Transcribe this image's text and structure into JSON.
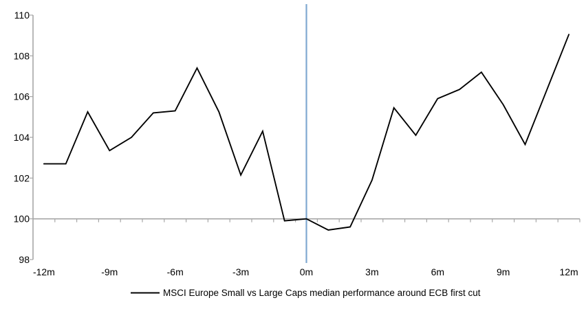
{
  "chart_data": {
    "type": "line",
    "title": "",
    "xlabel": "",
    "ylabel": "",
    "x_months": [
      -12,
      -11,
      -10,
      -9,
      -8,
      -7,
      -6,
      -5,
      -4,
      -3,
      -2,
      -1,
      0,
      1,
      2,
      3,
      4,
      5,
      6,
      7,
      8,
      9,
      10,
      11,
      12
    ],
    "series": [
      {
        "name": "MSCI Europe Small vs Large Caps median performance around ECB first cut",
        "values": [
          102.7,
          102.7,
          105.25,
          103.35,
          104.0,
          105.2,
          105.3,
          107.4,
          105.25,
          102.15,
          104.3,
          99.9,
          100.0,
          99.45,
          99.6,
          101.9,
          105.45,
          104.1,
          105.9,
          106.35,
          107.2,
          105.6,
          103.65,
          106.35,
          109.05
        ]
      }
    ],
    "x_tick_months": [
      -12,
      -9,
      -6,
      -3,
      0,
      3,
      6,
      9,
      12
    ],
    "x_tick_labels": [
      "-12m",
      "-9m",
      "-6m",
      "-3m",
      "0m",
      "3m",
      "6m",
      "9m",
      "12m"
    ],
    "y_ticks": [
      98,
      100,
      102,
      104,
      106,
      108,
      110
    ],
    "ylim": [
      98,
      110
    ],
    "xlim_months": [
      -12.5,
      12.5
    ],
    "baseline_value": 100,
    "event_line_month": 0,
    "grid": "baseline-only",
    "legend_position": "bottom-center",
    "legend": "MSCI Europe Small vs Large Caps median performance around ECB first cut",
    "colors": {
      "series": "#000000",
      "event_line": "#7FA8D0",
      "baseline": "#A6A6A6",
      "axis": "#A6A6A6",
      "text": "#000000",
      "background": "#FFFFFF"
    }
  }
}
